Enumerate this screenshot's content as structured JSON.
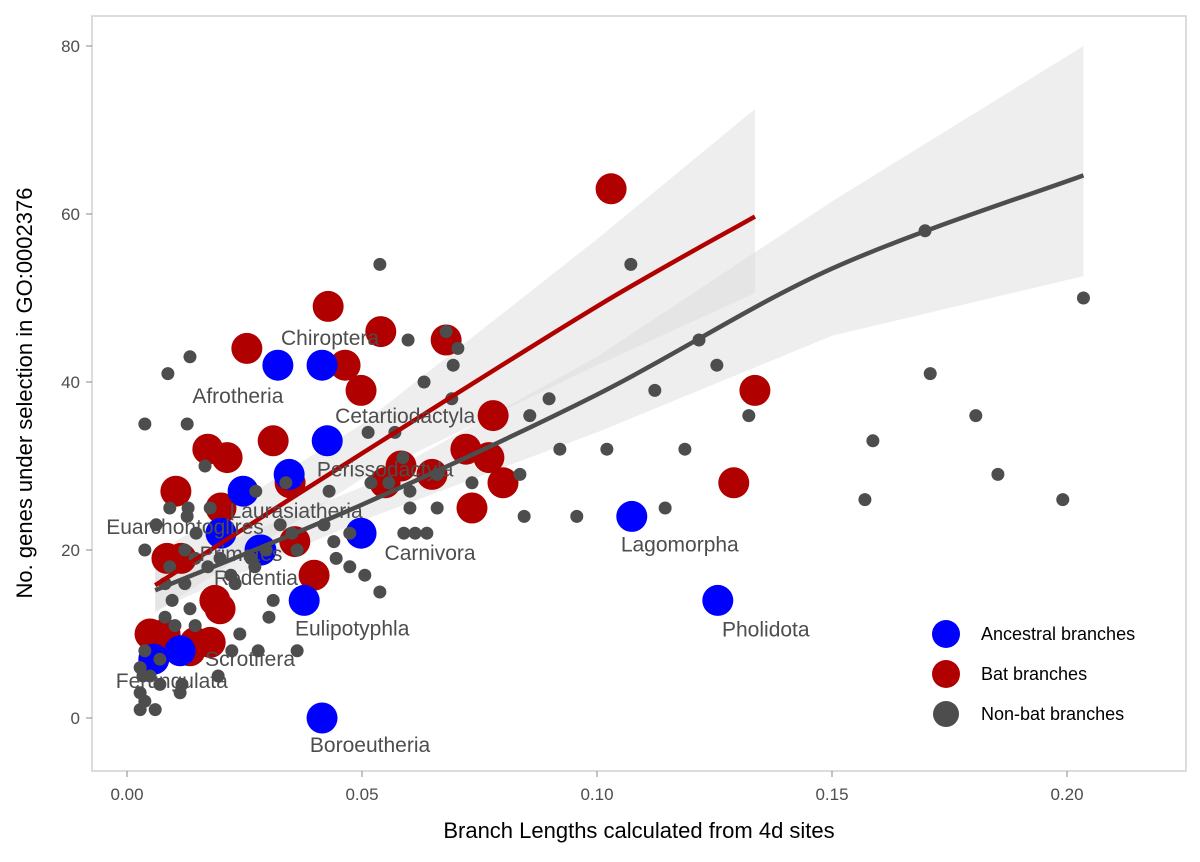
{
  "chart_data": {
    "type": "scatter",
    "title": "",
    "xlabel": "Branch Lengths calculated from 4d sites",
    "ylabel": "No. genes under selection in GO:0002376",
    "xlim": [
      -0.0075,
      0.2255
    ],
    "ylim": [
      -6,
      84
    ],
    "x_ticks": [
      "0.00",
      "0.05",
      "0.10",
      "0.15",
      "0.20"
    ],
    "y_ticks": [
      "0",
      "20",
      "40",
      "60",
      "80"
    ],
    "grid": false,
    "legend_position": "bottom-right",
    "legend": [
      {
        "name": "Ancestral branches",
        "color": "#0000ff"
      },
      {
        "name": "Bat branches",
        "color": "#b00000"
      },
      {
        "name": "Non-bat branches",
        "color": "#4d4d4d"
      }
    ],
    "series": [
      {
        "name": "Bat branches",
        "color": "#b00000",
        "points": [
          [
            0.103,
            63
          ],
          [
            0.0428,
            49
          ],
          [
            0.0255,
            44
          ],
          [
            0.0464,
            42
          ],
          [
            0.054,
            46
          ],
          [
            0.0679,
            45
          ],
          [
            0.0498,
            39
          ],
          [
            0.1336,
            39
          ],
          [
            0.0311,
            33
          ],
          [
            0.0172,
            32
          ],
          [
            0.0213,
            31
          ],
          [
            0.0779,
            36
          ],
          [
            0.0721,
            32
          ],
          [
            0.077,
            31
          ],
          [
            0.08,
            28
          ],
          [
            0.0734,
            25
          ],
          [
            0.0649,
            29
          ],
          [
            0.0583,
            30
          ],
          [
            0.0549,
            28
          ],
          [
            0.1291,
            28
          ],
          [
            0.0104,
            27
          ],
          [
            0.02,
            25
          ],
          [
            0.0347,
            28
          ],
          [
            0.0357,
            21
          ],
          [
            0.0085,
            19
          ],
          [
            0.0115,
            19
          ],
          [
            0.0398,
            17
          ],
          [
            0.0187,
            14
          ],
          [
            0.0198,
            13
          ],
          [
            0.0049,
            10
          ],
          [
            0.0081,
            10
          ],
          [
            0.0145,
            9
          ],
          [
            0.0177,
            9
          ],
          [
            0.0134,
            8
          ]
        ]
      },
      {
        "name": "Ancestral branches",
        "color": "#0000ff",
        "points": [
          {
            "x": 0.0415,
            "y": 42,
            "label": "Chiroptera"
          },
          {
            "x": 0.0321,
            "y": 42,
            "label": "Afrotheria"
          },
          {
            "x": 0.0426,
            "y": 33,
            "label": "Cetartiodactyla"
          },
          {
            "x": 0.0345,
            "y": 29,
            "label": "Perissodactyla"
          },
          {
            "x": 0.0247,
            "y": 27,
            "label": "Laurasiatheria"
          },
          {
            "x": 0.02,
            "y": 22,
            "label": "Euarchontoglires"
          },
          {
            "x": 0.0283,
            "y": 20,
            "label": "Primates"
          },
          {
            "x": 0.0285,
            "y": 20,
            "label": "Rodentia"
          },
          {
            "x": 0.0498,
            "y": 22,
            "label": "Carnivora"
          },
          {
            "x": 0.0377,
            "y": 14,
            "label": "Eulipotyphla"
          },
          {
            "x": 0.0113,
            "y": 8,
            "label": "Scrotifera"
          },
          {
            "x": 0.0057,
            "y": 7,
            "label": "Ferungulata"
          },
          {
            "x": 0.0415,
            "y": 0,
            "label": "Boroeutheria"
          },
          {
            "x": 0.1074,
            "y": 24,
            "label": "Lagomorpha"
          },
          {
            "x": 0.1257,
            "y": 14,
            "label": "Pholidota"
          }
        ]
      },
      {
        "name": "Non-bat branches",
        "color": "#4d4d4d",
        "points": [
          [
            0.0538,
            54
          ],
          [
            0.1072,
            54
          ],
          [
            0.1698,
            58
          ],
          [
            0.2035,
            50
          ],
          [
            0.1217,
            45
          ],
          [
            0.1255,
            42
          ],
          [
            0.1709,
            41
          ],
          [
            0.1123,
            39
          ],
          [
            0.0898,
            38
          ],
          [
            0.1806,
            36
          ],
          [
            0.1323,
            36
          ],
          [
            0.0857,
            36
          ],
          [
            0.1587,
            33
          ],
          [
            0.1187,
            32
          ],
          [
            0.1021,
            32
          ],
          [
            0.0921,
            32
          ],
          [
            0.157,
            26
          ],
          [
            0.1853,
            29
          ],
          [
            0.1991,
            26
          ],
          [
            0.1145,
            25
          ],
          [
            0.0957,
            24
          ],
          [
            0.0845,
            24
          ],
          [
            0.0836,
            29
          ],
          [
            0.0679,
            46
          ],
          [
            0.0704,
            44
          ],
          [
            0.0694,
            42
          ],
          [
            0.0598,
            45
          ],
          [
            0.0632,
            40
          ],
          [
            0.0691,
            38
          ],
          [
            0.0038,
            35
          ],
          [
            0.0128,
            35
          ],
          [
            0.0087,
            41
          ],
          [
            0.0134,
            43
          ],
          [
            0.0513,
            34
          ],
          [
            0.057,
            34
          ],
          [
            0.043,
            27
          ],
          [
            0.0602,
            27
          ],
          [
            0.0602,
            25
          ],
          [
            0.066,
            25
          ],
          [
            0.066,
            29
          ],
          [
            0.0734,
            28
          ],
          [
            0.0587,
            31
          ],
          [
            0.0519,
            28
          ],
          [
            0.0557,
            28
          ],
          [
            0.0338,
            28
          ],
          [
            0.0274,
            27
          ],
          [
            0.0166,
            30
          ],
          [
            0.0177,
            25
          ],
          [
            0.013,
            25
          ],
          [
            0.0038,
            20
          ],
          [
            0.0062,
            23
          ],
          [
            0.0091,
            25
          ],
          [
            0.0128,
            24
          ],
          [
            0.0147,
            22
          ],
          [
            0.0123,
            20
          ],
          [
            0.0145,
            19
          ],
          [
            0.0172,
            18
          ],
          [
            0.0198,
            19
          ],
          [
            0.0221,
            17
          ],
          [
            0.0264,
            19
          ],
          [
            0.0296,
            20
          ],
          [
            0.0326,
            23
          ],
          [
            0.0351,
            22
          ],
          [
            0.0362,
            20
          ],
          [
            0.0419,
            23
          ],
          [
            0.044,
            21
          ],
          [
            0.0445,
            19
          ],
          [
            0.0474,
            18
          ],
          [
            0.0506,
            17
          ],
          [
            0.0538,
            15
          ],
          [
            0.0474,
            22
          ],
          [
            0.0589,
            22
          ],
          [
            0.0613,
            22
          ],
          [
            0.0638,
            22
          ],
          [
            0.0272,
            18
          ],
          [
            0.023,
            16
          ],
          [
            0.0302,
            12
          ],
          [
            0.024,
            10
          ],
          [
            0.0223,
            8
          ],
          [
            0.0279,
            8
          ],
          [
            0.0362,
            8
          ],
          [
            0.0311,
            14
          ],
          [
            0.0096,
            14
          ],
          [
            0.0081,
            12
          ],
          [
            0.0102,
            11
          ],
          [
            0.0134,
            13
          ],
          [
            0.0145,
            11
          ],
          [
            0.0081,
            16
          ],
          [
            0.0091,
            18
          ],
          [
            0.0123,
            16
          ],
          [
            0.0038,
            8
          ],
          [
            0.0028,
            6
          ],
          [
            0.0049,
            5
          ],
          [
            0.007,
            4
          ],
          [
            0.0028,
            3
          ],
          [
            0.0038,
            2
          ],
          [
            0.006,
            1
          ],
          [
            0.0028,
            1
          ],
          [
            0.0113,
            3
          ],
          [
            0.0117,
            4
          ],
          [
            0.0194,
            5
          ],
          [
            0.007,
            7
          ],
          [
            0.0034,
            5
          ]
        ]
      }
    ],
    "fits": [
      {
        "series": "Non-bat branches",
        "color": "#4d4d4d",
        "line": [
          [
            0.006,
            15.2
          ],
          [
            0.05,
            25.4
          ],
          [
            0.1,
            38.5
          ],
          [
            0.15,
            53.5
          ],
          [
            0.2035,
            64.6
          ]
        ],
        "band": [
          [
            0.006,
            12.8,
            17.6
          ],
          [
            0.05,
            23.5,
            27.5
          ],
          [
            0.1,
            34,
            43
          ],
          [
            0.15,
            45.5,
            61.5
          ],
          [
            0.2035,
            52.6,
            80
          ]
        ]
      },
      {
        "series": "Bat branches",
        "color": "#b00000",
        "line": [
          [
            0.006,
            15.8
          ],
          [
            0.05,
            31.5
          ],
          [
            0.1,
            49
          ],
          [
            0.1336,
            59.7
          ]
        ],
        "band": [
          [
            0.006,
            12.5,
            19.5
          ],
          [
            0.05,
            28.5,
            35
          ],
          [
            0.1,
            42,
            57
          ],
          [
            0.1336,
            50.6,
            72.5
          ]
        ]
      }
    ]
  }
}
